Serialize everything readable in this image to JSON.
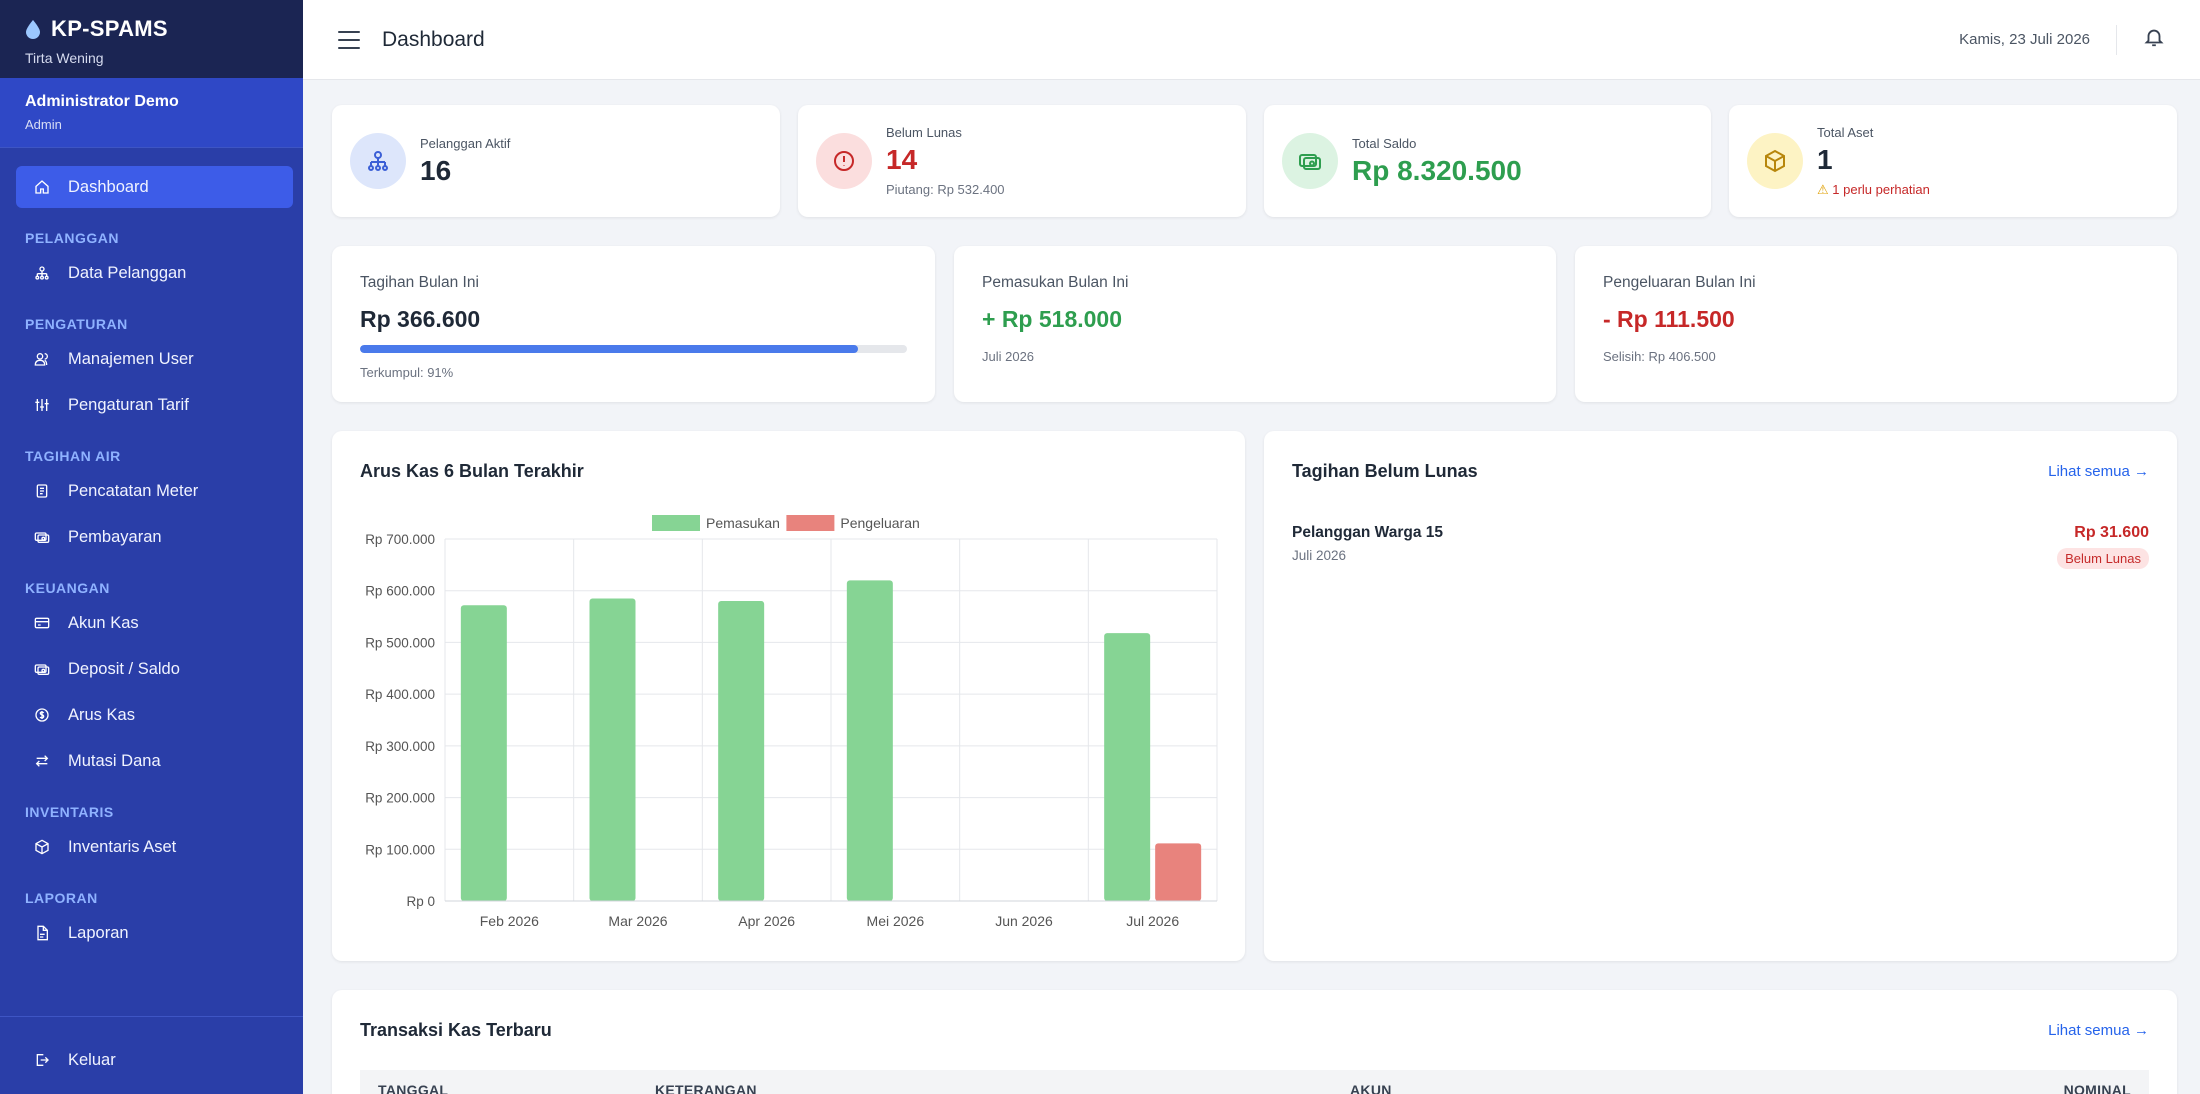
{
  "brand": {
    "title": "KP-SPAMS",
    "subtitle": "Tirta Wening"
  },
  "user": {
    "name": "Administrator Demo",
    "role": "Admin"
  },
  "nav": {
    "dashboard": "Dashboard",
    "sec_pelanggan": "PELANGGAN",
    "data_pelanggan": "Data Pelanggan",
    "sec_pengaturan": "PENGATURAN",
    "manajemen_user": "Manajemen User",
    "pengaturan_tarif": "Pengaturan Tarif",
    "sec_tagihan": "TAGIHAN AIR",
    "pencatatan_meter": "Pencatatan Meter",
    "pembayaran": "Pembayaran",
    "sec_keuangan": "KEUANGAN",
    "akun_kas": "Akun Kas",
    "deposit": "Deposit / Saldo",
    "arus_kas": "Arus Kas",
    "mutasi_dana": "Mutasi Dana",
    "sec_inventaris": "INVENTARIS",
    "inventaris_aset": "Inventaris Aset",
    "sec_laporan": "LAPORAN",
    "laporan": "Laporan",
    "keluar": "Keluar"
  },
  "header": {
    "title": "Dashboard",
    "date": "Kamis, 23 Juli 2026"
  },
  "stats": {
    "pelanggan": {
      "label": "Pelanggan Aktif",
      "value": "16"
    },
    "belum_lunas": {
      "label": "Belum Lunas",
      "value": "14",
      "note": "Piutang: Rp 532.400"
    },
    "saldo": {
      "label": "Total Saldo",
      "value": "Rp 8.320.500"
    },
    "aset": {
      "label": "Total Aset",
      "value": "1",
      "note": "1 perlu perhatian"
    }
  },
  "monthly": {
    "tagihan": {
      "label": "Tagihan Bulan Ini",
      "value": "Rp 366.600",
      "progress": 91,
      "note": "Terkumpul: 91%"
    },
    "pemasukan": {
      "label": "Pemasukan Bulan Ini",
      "value": "+ Rp 518.000",
      "note": "Juli 2026"
    },
    "pengeluaran": {
      "label": "Pengeluaran Bulan Ini",
      "value": "- Rp 111.500",
      "note": "Selisih: Rp 406.500"
    }
  },
  "chart_panel": {
    "title": "Arus Kas 6 Bulan Terakhir"
  },
  "chart_data": {
    "type": "bar",
    "title": "Arus Kas 6 Bulan Terakhir",
    "categories": [
      "Feb 2026",
      "Mar 2026",
      "Apr 2026",
      "Mei 2026",
      "Jun 2026",
      "Jul 2026"
    ],
    "series": [
      {
        "name": "Pemasukan",
        "color": "#86d494",
        "values": [
          572000,
          585000,
          580000,
          620000,
          0,
          518000
        ]
      },
      {
        "name": "Pengeluaran",
        "color": "#e8837d",
        "values": [
          0,
          0,
          0,
          0,
          0,
          111500
        ]
      }
    ],
    "yticks": [
      "Rp 0",
      "Rp 100.000",
      "Rp 200.000",
      "Rp 300.000",
      "Rp 400.000",
      "Rp 500.000",
      "Rp 600.000",
      "Rp 700.000"
    ],
    "ylim": [
      0,
      700000
    ],
    "legend": "top-center",
    "grid": true
  },
  "unpaid": {
    "title": "Tagihan Belum Lunas",
    "link": "Lihat semua →",
    "items": [
      {
        "name": "Pelanggan Warga 15",
        "period": "Juli 2026",
        "amount": "Rp 31.600",
        "status": "Belum Lunas"
      }
    ]
  },
  "transactions": {
    "title": "Transaksi Kas Terbaru",
    "link": "Lihat semua →",
    "columns": [
      "TANGGAL",
      "KETERANGAN",
      "AKUN",
      "NOMINAL"
    ]
  },
  "colors": {
    "sidebar": "#2a3ea8",
    "brand_bg": "#1b2553",
    "active": "#3d5ce8",
    "green": "#2e9e4f",
    "red": "#c62828"
  }
}
